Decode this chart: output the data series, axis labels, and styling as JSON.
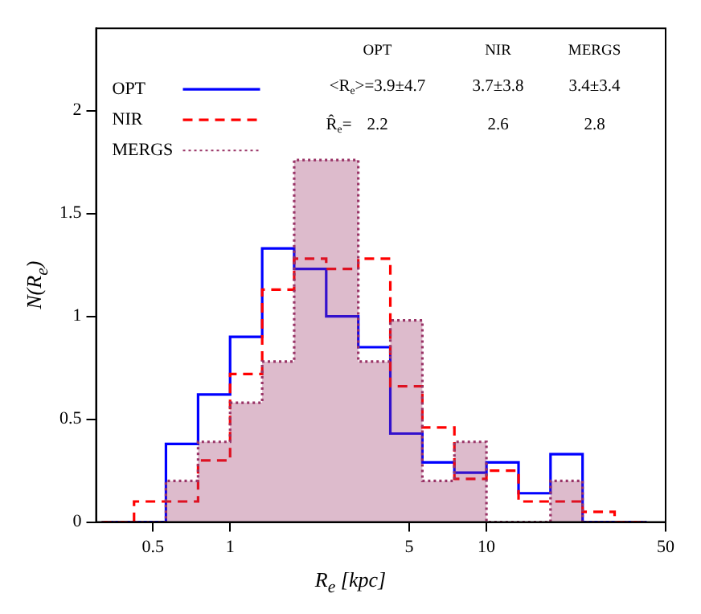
{
  "chart_data": {
    "type": "histogram",
    "xlabel": "R$_{e}$ [kpc]",
    "ylabel": "N(R$_{e}$)",
    "bins": [
      0.316,
      0.422,
      0.562,
      0.75,
      1,
      1.334,
      1.778,
      2.371,
      3.162,
      4.217,
      5.623,
      7.499,
      10,
      13.34,
      17.78,
      23.71,
      31.62,
      42.17
    ],
    "series": [
      {
        "name": "OPT",
        "color": "#0000ff",
        "line_style": "solid",
        "values": [
          0,
          0,
          0.38,
          0.62,
          0.9,
          1.33,
          1.23,
          1.0,
          0.85,
          0.43,
          0.29,
          0.24,
          0.29,
          0.14,
          0.33,
          0,
          0
        ]
      },
      {
        "name": "NIR",
        "color": "#ff0000",
        "line_style": "dashed",
        "values": [
          0,
          0.1,
          0.1,
          0.3,
          0.72,
          1.13,
          1.28,
          1.23,
          1.28,
          0.66,
          0.46,
          0.21,
          0.25,
          0.1,
          0.1,
          0.05,
          0
        ]
      },
      {
        "name": "MERGS",
        "color": "#993366",
        "line_style": "dotted",
        "values": [
          0,
          0,
          0.2,
          0.39,
          0.58,
          0.78,
          1.76,
          1.76,
          0.78,
          0.98,
          0.2,
          0.39,
          0,
          0,
          0.2,
          0,
          0
        ]
      }
    ],
    "annotations": [
      "OPT",
      "NIR",
      "MERGS",
      "<R$_{e}$>=3.9±4.7",
      "3.7±3.8",
      "3.4±3.4",
      "R̂$_{e}$=",
      "2.2",
      "2.6",
      "2.8"
    ],
    "log": "x",
    "xlim": [
      0.3,
      50
    ],
    "xticks": [
      0.5,
      1,
      5,
      10,
      50
    ],
    "ylim": [
      0,
      2.4
    ],
    "yticks": [
      0,
      0.5,
      1,
      1.5,
      2
    ],
    "grid": false,
    "legend": "top left"
  }
}
